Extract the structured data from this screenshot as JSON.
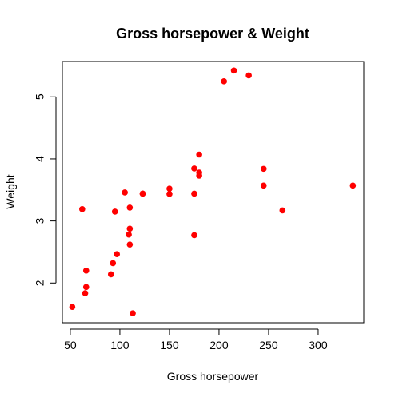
{
  "chart_data": {
    "type": "scatter",
    "title": "Gross horsepower & Weight",
    "xlabel": "Gross horsepower",
    "ylabel": "Weight",
    "xlim": [
      42,
      346
    ],
    "ylim": [
      1.36,
      5.57
    ],
    "x_ticks": [
      50,
      100,
      150,
      200,
      250,
      300
    ],
    "y_ticks": [
      2,
      3,
      4,
      5
    ],
    "grid": false,
    "legend": "none",
    "point_color": "#ff0000",
    "points": [
      {
        "x": 110,
        "y": 2.62
      },
      {
        "x": 110,
        "y": 2.875
      },
      {
        "x": 93,
        "y": 2.32
      },
      {
        "x": 110,
        "y": 3.215
      },
      {
        "x": 175,
        "y": 3.44
      },
      {
        "x": 105,
        "y": 3.46
      },
      {
        "x": 245,
        "y": 3.57
      },
      {
        "x": 62,
        "y": 3.19
      },
      {
        "x": 95,
        "y": 3.15
      },
      {
        "x": 123,
        "y": 3.44
      },
      {
        "x": 123,
        "y": 3.44
      },
      {
        "x": 180,
        "y": 4.07
      },
      {
        "x": 180,
        "y": 3.73
      },
      {
        "x": 180,
        "y": 3.78
      },
      {
        "x": 205,
        "y": 5.25
      },
      {
        "x": 215,
        "y": 5.424
      },
      {
        "x": 230,
        "y": 5.345
      },
      {
        "x": 66,
        "y": 2.2
      },
      {
        "x": 52,
        "y": 1.615
      },
      {
        "x": 65,
        "y": 1.835
      },
      {
        "x": 97,
        "y": 2.465
      },
      {
        "x": 150,
        "y": 3.52
      },
      {
        "x": 150,
        "y": 3.435
      },
      {
        "x": 245,
        "y": 3.84
      },
      {
        "x": 175,
        "y": 3.845
      },
      {
        "x": 66,
        "y": 1.935
      },
      {
        "x": 91,
        "y": 2.14
      },
      {
        "x": 113,
        "y": 1.513
      },
      {
        "x": 264,
        "y": 3.17
      },
      {
        "x": 175,
        "y": 2.77
      },
      {
        "x": 335,
        "y": 3.57
      },
      {
        "x": 109,
        "y": 2.78
      }
    ]
  }
}
